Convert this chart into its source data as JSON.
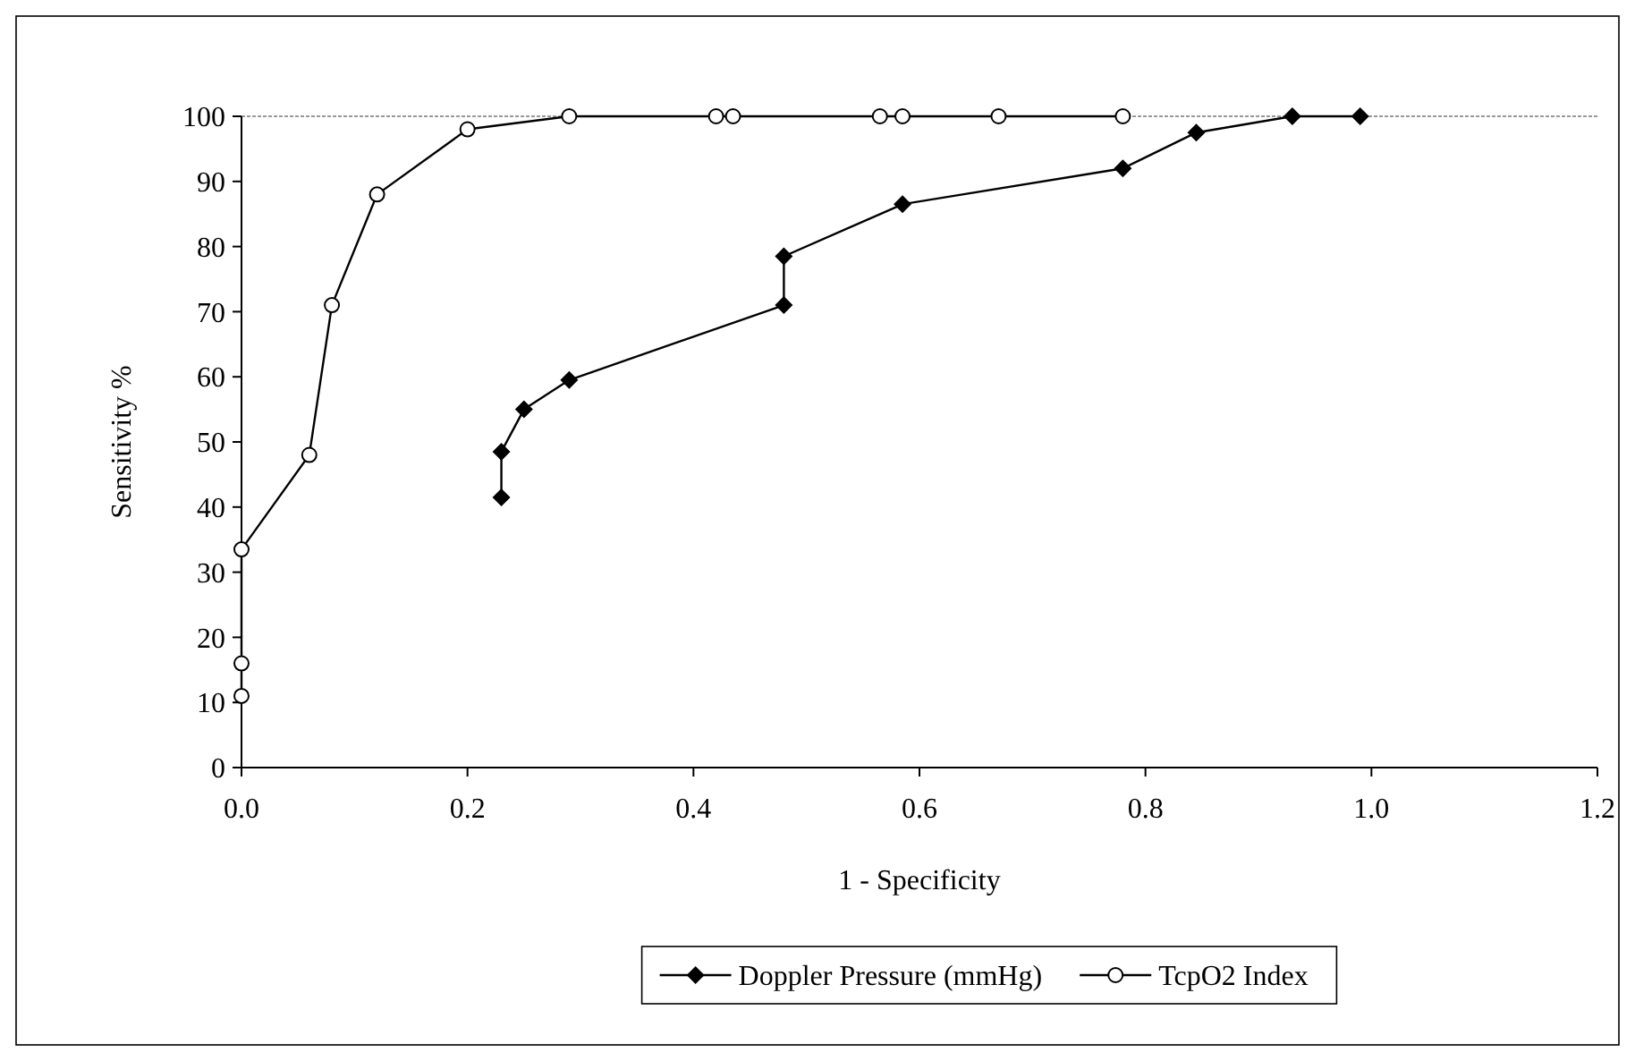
{
  "chart_data": {
    "type": "line",
    "xlabel": "1 - Specificity",
    "ylabel": "Sensitivity %",
    "xlim": [
      0,
      1.2
    ],
    "ylim": [
      0,
      100
    ],
    "xticks": [
      {
        "value": 0,
        "label": "0.0"
      },
      {
        "value": 0.2,
        "label": "0.2"
      },
      {
        "value": 0.4,
        "label": "0.4"
      },
      {
        "value": 0.6,
        "label": "0.6"
      },
      {
        "value": 0.8,
        "label": "0.8"
      },
      {
        "value": 1,
        "label": "1.0"
      },
      {
        "value": 1.2,
        "label": "1.2"
      }
    ],
    "yticks": [
      0,
      10,
      20,
      30,
      40,
      50,
      60,
      70,
      80,
      90,
      100
    ],
    "legend": "bottom",
    "grid": false,
    "series": [
      {
        "name": "Doppler Pressure (mmHg)",
        "color": "#000000",
        "marker": "diamond",
        "x": [
          0.23,
          0.23,
          0.25,
          0.29,
          0.48,
          0.48,
          0.585,
          0.78,
          0.845,
          0.93,
          0.99
        ],
        "values": [
          41.5,
          48.5,
          55,
          59.5,
          71,
          78.5,
          86.5,
          92,
          97.5,
          100,
          100
        ]
      },
      {
        "name": "TcpO2 Index",
        "color": "#000000",
        "marker": "circle",
        "x": [
          0,
          0,
          0,
          0.06,
          0.08,
          0.12,
          0.2,
          0.29,
          0.42,
          0.435,
          0.565,
          0.585,
          0.67,
          0.78
        ],
        "values": [
          11,
          16,
          33.5,
          48,
          71,
          88,
          98,
          100,
          100,
          100,
          100,
          100,
          100,
          100
        ]
      }
    ]
  }
}
